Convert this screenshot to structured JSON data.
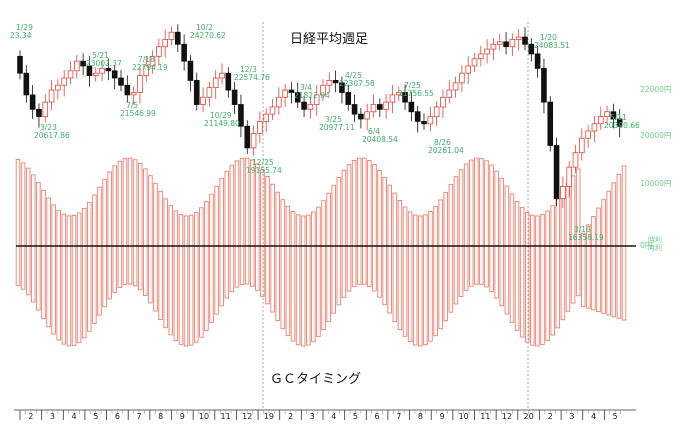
{
  "chart_data": {
    "type": "candlestick+bar",
    "title": "日経平均週足",
    "bottom_title": "ＧＣタイミング",
    "price_axis": {
      "ticks": [
        {
          "value": 22000,
          "label": "22000円"
        },
        {
          "value": 20000,
          "label": "20000円"
        },
        {
          "value": 10000,
          "label": "10000円"
        },
        {
          "value": 0,
          "label": "0円"
        }
      ],
      "right_edge_labels": [
        "時利",
        "時利"
      ]
    },
    "x_months": [
      "2",
      "3",
      "4",
      "5",
      "6",
      "7",
      "8",
      "9",
      "10",
      "11",
      "12",
      "19",
      "2",
      "3",
      "4",
      "5",
      "6",
      "7",
      "8",
      "9",
      "10",
      "11",
      "12",
      "20",
      "2",
      "3",
      "4",
      "5"
    ],
    "year_markers": [
      "19",
      "20"
    ],
    "annotations": [
      {
        "date": "1/29",
        "value": "23.34"
      },
      {
        "date": "3/23",
        "value": "20617.86"
      },
      {
        "date": "5/21",
        "value": "23002.37"
      },
      {
        "date": "7/18",
        "value": "22794.19"
      },
      {
        "date": "7/5",
        "value": "21546.99"
      },
      {
        "date": "10/2",
        "value": "24270.62"
      },
      {
        "date": "10/29",
        "value": "21149.80"
      },
      {
        "date": "12/3",
        "value": "22574.76"
      },
      {
        "date": "12/25",
        "value": "19155.74"
      },
      {
        "date": "3/4",
        "value": "21822.04"
      },
      {
        "date": "3/25",
        "value": "20977.11"
      },
      {
        "date": "4/25",
        "value": "22307.58"
      },
      {
        "date": "6/4",
        "value": "20408.54"
      },
      {
        "date": "7/25",
        "value": "21756.55"
      },
      {
        "date": "8/26",
        "value": "20261.04"
      },
      {
        "date": "1/20",
        "value": "24083.51"
      },
      {
        "date": "3/19",
        "value": "16358.19"
      },
      {
        "date": "5/11",
        "value": "20390.66"
      }
    ],
    "legend": "none",
    "grid": "vertical year separators (dotted)",
    "colors": {
      "bullish_candle": "#e0463a",
      "bearish_candle": "#111111",
      "annotation_text": "#3fae6c",
      "oscillator_bar": "#f07f6e",
      "zero_line": "#111111",
      "axis_label": "#6fcf8f"
    }
  }
}
